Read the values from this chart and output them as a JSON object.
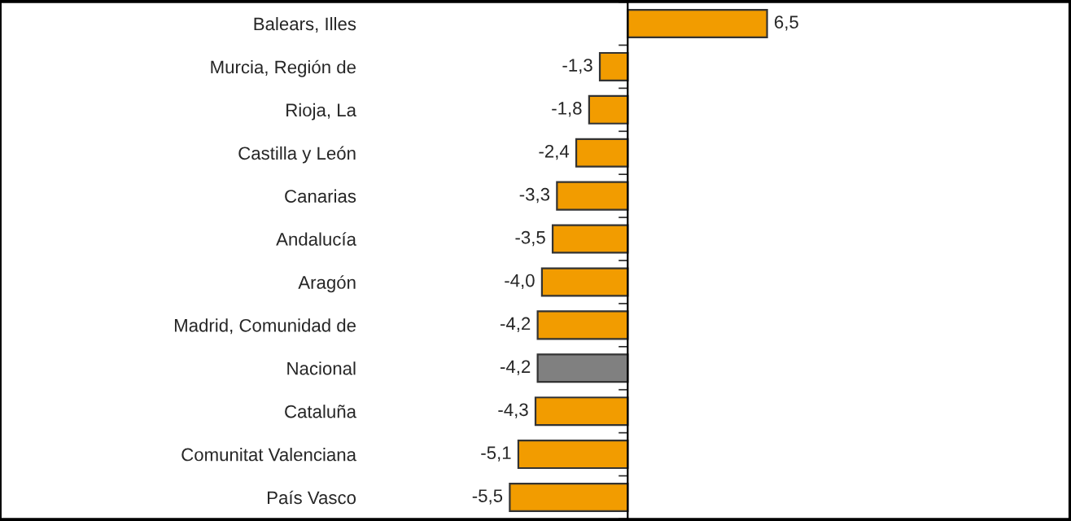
{
  "chart_data": {
    "type": "bar",
    "orientation": "horizontal",
    "categories": [
      "Balears, Illes",
      "Murcia, Región de",
      "Rioja, La",
      "Castilla y León",
      "Canarias",
      "Andalucía",
      "Aragón",
      "Madrid, Comunidad de",
      "Nacional",
      "Cataluña",
      "Comunitat Valenciana",
      "País Vasco"
    ],
    "values": [
      6.5,
      -1.3,
      -1.8,
      -2.4,
      -3.3,
      -3.5,
      -4.0,
      -4.2,
      -4.2,
      -4.3,
      -5.1,
      -5.5
    ],
    "value_labels": [
      "6,5",
      "-1,3",
      "-1,8",
      "-2,4",
      "-3,3",
      "-3,5",
      "-4,0",
      "-4,2",
      "-4,2",
      "-4,3",
      "-5,1",
      "-5,5"
    ],
    "colors": [
      "#f29c00",
      "#f29c00",
      "#f29c00",
      "#f29c00",
      "#f29c00",
      "#f29c00",
      "#f29c00",
      "#f29c00",
      "#808080",
      "#f29c00",
      "#f29c00",
      "#f29c00"
    ],
    "xlim": [
      -29.2,
      20.6
    ],
    "tick_labels": "y",
    "grid": false
  }
}
